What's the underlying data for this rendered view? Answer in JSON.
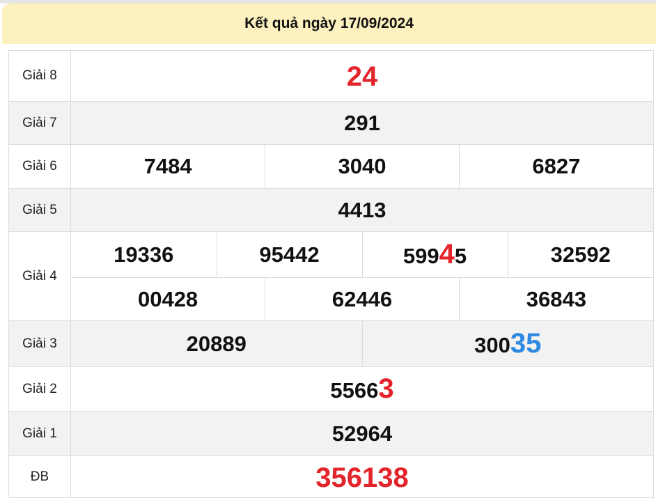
{
  "header": {
    "title": "Kết quả ngày 17/09/2024"
  },
  "colors": {
    "highlight_red": "#e3242b",
    "highlight_blue": "#2d8ae0",
    "header_bg": "#fdf1bf"
  },
  "prizes": [
    {
      "label": "Giải 8",
      "numbers": [
        {
          "main": "",
          "hl": "24",
          "hl_color": "red"
        }
      ]
    },
    {
      "label": "Giải 7",
      "numbers": [
        {
          "main": "291",
          "hl": "",
          "tail": ""
        }
      ]
    },
    {
      "label": "Giải 6",
      "numbers": [
        {
          "main": "7484"
        },
        {
          "main": "3040"
        },
        {
          "main": "6827"
        }
      ]
    },
    {
      "label": "Giải 5",
      "numbers": [
        {
          "main": "4413"
        }
      ]
    },
    {
      "label": "Giải 4",
      "row1": [
        {
          "main": "19336"
        },
        {
          "main": "95442"
        },
        {
          "main": "599",
          "hl": "4",
          "hl_color": "red",
          "tail": "5"
        },
        {
          "main": "32592"
        }
      ],
      "row2": [
        {
          "main": "00428"
        },
        {
          "main": "62446"
        },
        {
          "main": "36843"
        }
      ]
    },
    {
      "label": "Giải 3",
      "numbers": [
        {
          "main": "20889"
        },
        {
          "main": "300",
          "hl": "35",
          "hl_color": "blue"
        }
      ]
    },
    {
      "label": "Giải 2",
      "numbers": [
        {
          "main": "5566",
          "hl": "3",
          "hl_color": "red"
        }
      ]
    },
    {
      "label": "Giải 1",
      "numbers": [
        {
          "main": "52964"
        }
      ]
    },
    {
      "label": "ĐB",
      "numbers": [
        {
          "main": "",
          "hl": "356138",
          "hl_color": "red"
        }
      ]
    }
  ]
}
